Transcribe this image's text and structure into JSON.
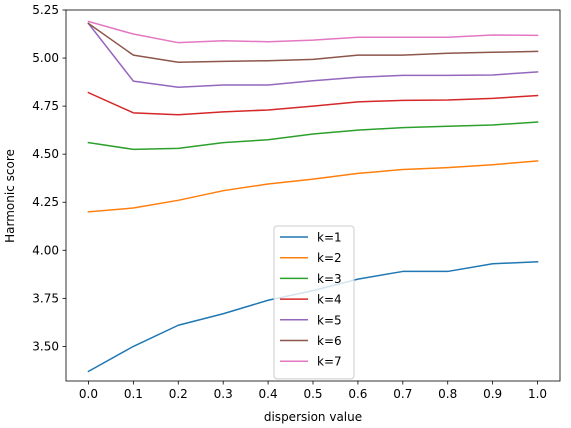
{
  "chart_data": {
    "type": "line",
    "title": "",
    "xlabel": "dispersion value",
    "ylabel": "Harmonic score",
    "x": [
      0.0,
      0.1,
      0.2,
      0.3,
      0.4,
      0.5,
      0.6,
      0.7,
      0.8,
      0.9,
      1.0
    ],
    "xticks": [
      0.0,
      0.1,
      0.2,
      0.3,
      0.4,
      0.5,
      0.6,
      0.7,
      0.8,
      0.9,
      1.0
    ],
    "xtick_labels": [
      "0.0",
      "0.1",
      "0.2",
      "0.3",
      "0.4",
      "0.5",
      "0.6",
      "0.7",
      "0.8",
      "0.9",
      "1.0"
    ],
    "yticks": [
      3.5,
      3.75,
      4.0,
      4.25,
      4.5,
      4.75,
      5.0,
      5.25
    ],
    "ytick_labels": [
      "3.50",
      "3.75",
      "4.00",
      "4.25",
      "4.50",
      "4.75",
      "5.00",
      "5.25"
    ],
    "xlim": [
      -0.05,
      1.05
    ],
    "ylim": [
      3.32,
      5.25
    ],
    "grid": false,
    "legend_position": "lower-center",
    "series": [
      {
        "name": "k=1",
        "color": "#1f77b4",
        "values": [
          3.37,
          3.5,
          3.61,
          3.67,
          3.74,
          3.79,
          3.85,
          3.89,
          3.89,
          3.93,
          3.94
        ]
      },
      {
        "name": "k=2",
        "color": "#ff7f0e",
        "values": [
          4.2,
          4.22,
          4.26,
          4.31,
          4.345,
          4.37,
          4.4,
          4.42,
          4.43,
          4.445,
          4.465
        ]
      },
      {
        "name": "k=3",
        "color": "#2ca02c",
        "values": [
          4.56,
          4.525,
          4.53,
          4.56,
          4.575,
          4.605,
          4.625,
          4.638,
          4.645,
          4.652,
          4.667
        ]
      },
      {
        "name": "k=4",
        "color": "#d62728",
        "values": [
          4.82,
          4.715,
          4.705,
          4.72,
          4.73,
          4.75,
          4.772,
          4.78,
          4.782,
          4.79,
          4.805
        ]
      },
      {
        "name": "k=5",
        "color": "#9467bd",
        "values": [
          5.18,
          4.88,
          4.848,
          4.86,
          4.86,
          4.882,
          4.9,
          4.91,
          4.91,
          4.912,
          4.928
        ]
      },
      {
        "name": "k=6",
        "color": "#8c564b",
        "values": [
          5.18,
          5.015,
          4.978,
          4.983,
          4.986,
          4.993,
          5.015,
          5.015,
          5.025,
          5.03,
          5.035
        ]
      },
      {
        "name": "k=7",
        "color": "#e377c2",
        "values": [
          5.19,
          5.125,
          5.08,
          5.09,
          5.085,
          5.093,
          5.108,
          5.108,
          5.108,
          5.12,
          5.118
        ]
      }
    ]
  }
}
